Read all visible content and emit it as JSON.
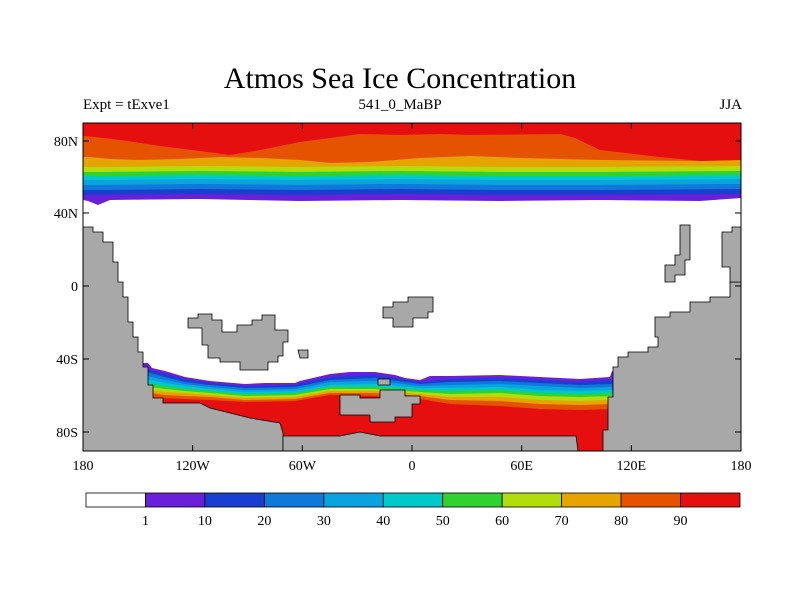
{
  "title": "Atmos Sea Ice Concentration",
  "subtitle_left": "Expt = tExve1",
  "subtitle_center": "541_0_MaBP",
  "subtitle_right": "JJA",
  "lat_ticks": [
    "80N",
    "40N",
    "0",
    "40S",
    "80S"
  ],
  "lon_ticks": [
    "180",
    "120W",
    "60W",
    "0",
    "60E",
    "120E",
    "180"
  ],
  "colorbar": {
    "colors": [
      "#ffffff",
      "#6a1fd9",
      "#1a3fd0",
      "#0f79d9",
      "#09a3e0",
      "#00c9c9",
      "#2fd22f",
      "#b2dc0c",
      "#e6a400",
      "#e65300",
      "#e50f0f"
    ],
    "labels": [
      "1",
      "10",
      "20",
      "30",
      "40",
      "50",
      "60",
      "70",
      "80",
      "90"
    ]
  },
  "colors": {
    "land": "#a8a8a8",
    "ice90": "#e50f0f",
    "ice80": "#e65300",
    "ice70": "#e6a400",
    "ice60": "#b2dc0c",
    "ice50": "#2fd22f",
    "ice40": "#00c9c9",
    "ice30": "#09a3e0",
    "ice20": "#0f79d9",
    "ice10": "#1a3fd0",
    "ice1": "#6a1fd9"
  }
}
